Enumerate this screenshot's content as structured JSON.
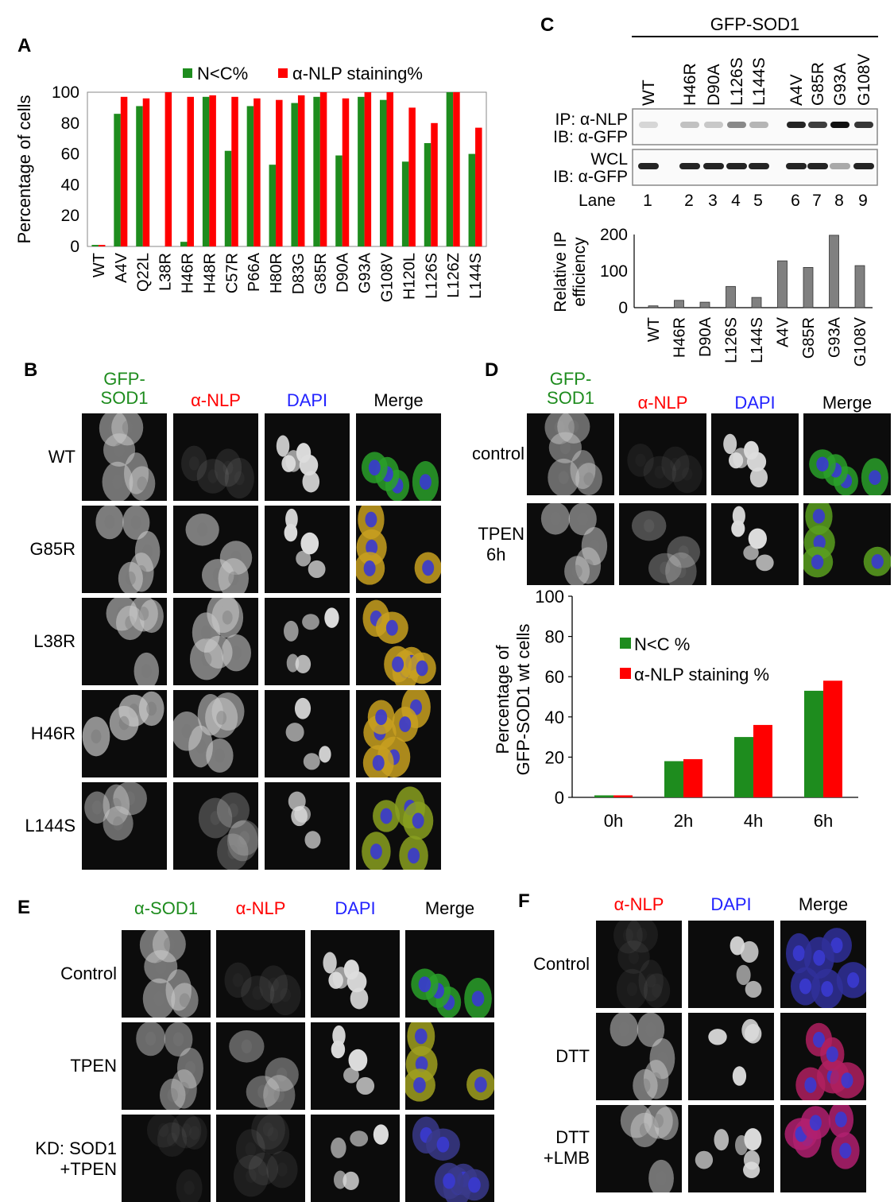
{
  "panels": {
    "A": "A",
    "B": "B",
    "C": "C",
    "D": "D",
    "E": "E",
    "F": "F"
  },
  "colors": {
    "green": "#1e8c1e",
    "red": "#ff0000",
    "blue": "#2222ff",
    "bar_gray": "#808080"
  },
  "panelA": {
    "chart_data": {
      "type": "bar",
      "ylabel": "Percentage of cells",
      "ylim": [
        0,
        100
      ],
      "yticks": [
        0,
        20,
        40,
        60,
        80,
        100
      ],
      "categories": [
        "WT",
        "A4V",
        "Q22L",
        "L38R",
        "H46R",
        "H48R",
        "C57R",
        "P66A",
        "H80R",
        "D83G",
        "G85R",
        "D90A",
        "G93A",
        "G108V",
        "H120L",
        "L126S",
        "L126Z",
        "L144S"
      ],
      "series": [
        {
          "name": "N<C%",
          "color": "#1e8c1e",
          "values": [
            1,
            86,
            91,
            0,
            3,
            97,
            62,
            91,
            53,
            93,
            97,
            59,
            97,
            95,
            55,
            67,
            100,
            60
          ]
        },
        {
          "name": "α-NLP staining%",
          "color": "#ff0000",
          "values": [
            1,
            97,
            96,
            100,
            97,
            98,
            97,
            96,
            95,
            98,
            100,
            96,
            100,
            100,
            90,
            80,
            100,
            77
          ]
        }
      ]
    }
  },
  "panelB": {
    "headers": [
      {
        "line1": "GFP-",
        "line2": "SOD1",
        "color": "#1e8c1e"
      },
      {
        "line1": "α-NLP",
        "line2": "",
        "color": "#ff0000"
      },
      {
        "line1": "DAPI",
        "line2": "",
        "color": "#2222ff"
      },
      {
        "line1": "Merge",
        "line2": "",
        "color": "#000000"
      }
    ],
    "rows": [
      "WT",
      "G85R",
      "L38R",
      "H46R",
      "L144S"
    ]
  },
  "panelC": {
    "title": "GFP-SOD1",
    "lanes_top": [
      "WT",
      "H46R",
      "D90A",
      "L126S",
      "L144S",
      "A4V",
      "G85R",
      "G93A",
      "G108V"
    ],
    "blot1_label_line1": "IP: α-NLP",
    "blot1_label_line2": "IB: α-GFP",
    "blot2_label_line1": "WCL",
    "blot2_label_line2": "IB: α-GFP",
    "lane_label": "Lane",
    "lane_numbers": [
      "1",
      "2",
      "3",
      "4",
      "5",
      "6",
      "7",
      "8",
      "9"
    ],
    "chart_data": {
      "type": "bar",
      "ylabel_line1": "Relative IP",
      "ylabel_line2": "efficiency",
      "ylim": [
        0,
        200
      ],
      "yticks": [
        0,
        100,
        200
      ],
      "categories": [
        "WT",
        "H46R",
        "D90A",
        "L126S",
        "L144S",
        "A4V",
        "G85R",
        "G93A",
        "G108V"
      ],
      "values": [
        5,
        20,
        15,
        58,
        28,
        128,
        110,
        198,
        115
      ]
    }
  },
  "panelD": {
    "headers": [
      {
        "line1": "GFP-",
        "line2": "SOD1",
        "color": "#1e8c1e"
      },
      {
        "line1": "α-NLP",
        "line2": "",
        "color": "#ff0000"
      },
      {
        "line1": "DAPI",
        "line2": "",
        "color": "#2222ff"
      },
      {
        "line1": "Merge",
        "line2": "",
        "color": "#000000"
      }
    ],
    "rows": [
      {
        "line1": "control",
        "line2": ""
      },
      {
        "line1": "TPEN",
        "line2": "6h"
      }
    ],
    "chart_data": {
      "type": "bar",
      "ylabel_line1": "Percentage of",
      "ylabel_line2": "GFP-SOD1 wt cells",
      "ylim": [
        0,
        100
      ],
      "yticks": [
        0,
        20,
        40,
        60,
        80,
        100
      ],
      "categories": [
        "0h",
        "2h",
        "4h",
        "6h"
      ],
      "legend": [
        "N<C %",
        "α-NLP staining %"
      ],
      "series": [
        {
          "name": "N<C %",
          "color": "#1e8c1e",
          "values": [
            1,
            18,
            30,
            53
          ]
        },
        {
          "name": "α-NLP staining %",
          "color": "#ff0000",
          "values": [
            1,
            19,
            36,
            58
          ]
        }
      ]
    }
  },
  "panelE": {
    "headers": [
      {
        "text": "α-SOD1",
        "color": "#1e8c1e"
      },
      {
        "text": "α-NLP",
        "color": "#ff0000"
      },
      {
        "text": "DAPI",
        "color": "#2222ff"
      },
      {
        "text": "Merge",
        "color": "#000000"
      }
    ],
    "rows": [
      {
        "line1": "Control",
        "line2": ""
      },
      {
        "line1": "TPEN",
        "line2": ""
      },
      {
        "line1": "KD: SOD1",
        "line2": "+TPEN"
      }
    ]
  },
  "panelF": {
    "headers": [
      {
        "text": "α-NLP",
        "color": "#ff0000"
      },
      {
        "text": "DAPI",
        "color": "#2222ff"
      },
      {
        "text": "Merge",
        "color": "#000000"
      }
    ],
    "rows": [
      {
        "line1": "Control",
        "line2": ""
      },
      {
        "line1": "DTT",
        "line2": ""
      },
      {
        "line1": "DTT",
        "line2": "+LMB"
      }
    ]
  }
}
